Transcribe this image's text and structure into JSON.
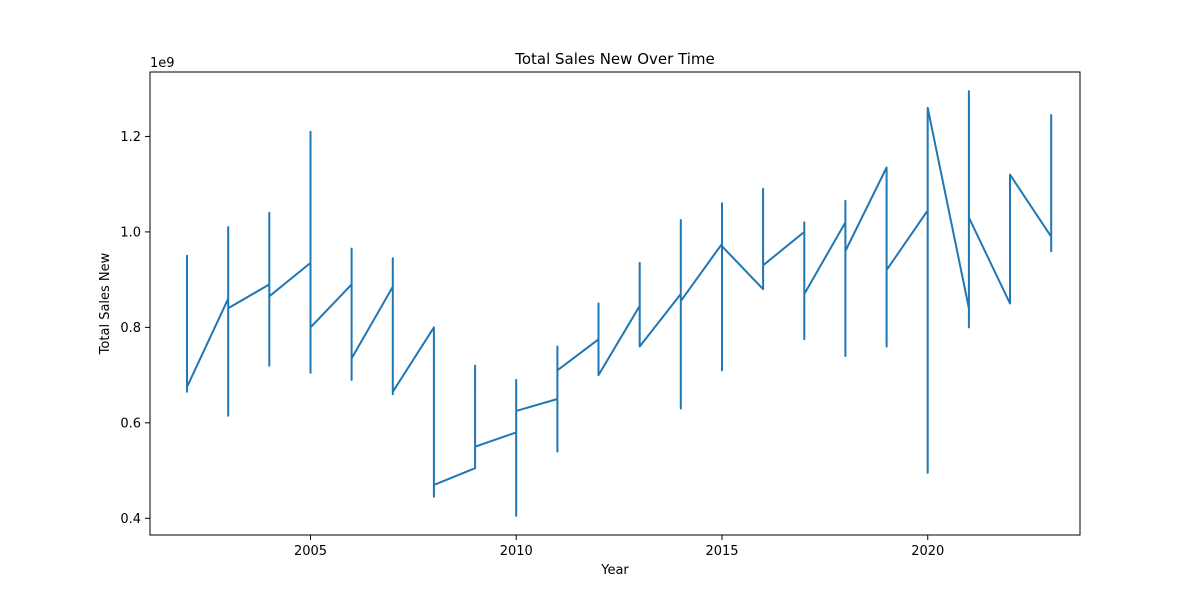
{
  "chart_data": {
    "type": "line",
    "title": "Total Sales New Over Time",
    "xlabel": "Year",
    "ylabel": "Total Sales New",
    "y_offset_label": "1e9",
    "xlim": [
      2001.1,
      2023.7
    ],
    "ylim": [
      0.365,
      1.335
    ],
    "y_scale_factor": 1000000000,
    "xticks": [
      2005,
      2010,
      2015,
      2020
    ],
    "xtick_labels": [
      "2005",
      "2010",
      "2015",
      "2020"
    ],
    "yticks": [
      0.4,
      0.6,
      0.8,
      1.0,
      1.2
    ],
    "ytick_labels": [
      "0.4",
      "0.6",
      "0.8",
      "1.0",
      "1.2"
    ],
    "grid": false,
    "legend": "none",
    "line_color": "#1f77b4",
    "series": [
      {
        "x": [
          2002,
          2002,
          2002,
          2002,
          2002,
          2003,
          2003,
          2003,
          2003,
          2003,
          2004,
          2004,
          2004,
          2004,
          2005,
          2005,
          2005,
          2005,
          2006,
          2006,
          2006,
          2006,
          2007,
          2007,
          2007,
          2007,
          2008,
          2008,
          2008,
          2009,
          2009,
          2009,
          2010,
          2010,
          2010,
          2010,
          2011,
          2011,
          2011,
          2011,
          2012,
          2012,
          2012,
          2013,
          2013,
          2013,
          2014,
          2014,
          2014,
          2014,
          2015,
          2015,
          2015,
          2015,
          2016,
          2016,
          2016,
          2017,
          2017,
          2017,
          2017,
          2018,
          2018,
          2018,
          2018,
          2019,
          2019,
          2019,
          2020,
          2020,
          2020,
          2021,
          2021,
          2021,
          2021,
          2022,
          2022,
          2022,
          2023,
          2023,
          2023
        ],
        "y": [
          0.76,
          0.95,
          0.665,
          0.75,
          0.675,
          0.86,
          1.01,
          0.615,
          1.01,
          0.84,
          0.89,
          1.04,
          0.72,
          0.865,
          0.935,
          1.21,
          0.705,
          0.8,
          0.89,
          0.965,
          0.69,
          0.735,
          0.885,
          0.945,
          0.66,
          0.665,
          0.8,
          0.445,
          0.47,
          0.505,
          0.72,
          0.55,
          0.58,
          0.405,
          0.69,
          0.625,
          0.65,
          0.54,
          0.76,
          0.71,
          0.775,
          0.85,
          0.7,
          0.845,
          0.935,
          0.76,
          0.87,
          1.025,
          0.63,
          0.855,
          0.975,
          1.06,
          0.71,
          0.97,
          0.88,
          1.09,
          0.93,
          1.0,
          1.02,
          0.775,
          0.87,
          1.02,
          1.065,
          0.74,
          0.96,
          1.135,
          0.76,
          0.92,
          1.045,
          0.495,
          1.26,
          0.84,
          1.295,
          0.8,
          1.03,
          0.85,
          1.12,
          1.12,
          0.99,
          1.245,
          0.96
        ]
      }
    ]
  }
}
